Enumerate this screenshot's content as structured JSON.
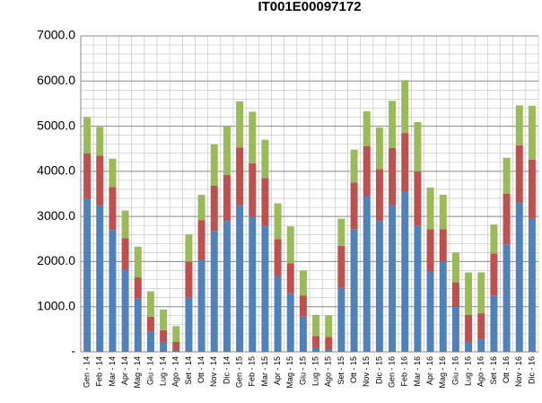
{
  "chart_data": {
    "type": "stacked_bar",
    "title": "IT001E00097172",
    "categories": [
      "Gen - 14",
      "Feb - 14",
      "Mar - 14",
      "Apr - 14",
      "Mag - 14",
      "Giu - 14",
      "Lug - 14",
      "Ago - 14",
      "Set - 14",
      "Ott - 14",
      "Nov - 14",
      "Dic - 14",
      "Gen - 15",
      "Feb - 15",
      "Mar - 15",
      "Apr - 15",
      "Mag - 15",
      "Giu - 15",
      "Lug - 15",
      "Ago - 15",
      "Set - 15",
      "Ott - 15",
      "Nov - 15",
      "Dic - 15",
      "Gen - 16",
      "Feb - 16",
      "Mar - 16",
      "Apr - 16",
      "Mag - 16",
      "Giu - 16",
      "Lug - 16",
      "Ago - 16",
      "Set - 16",
      "Ott - 16",
      "Nov - 16",
      "Dic - 16"
    ],
    "series": [
      {
        "color": "#4f81bd",
        "values": [
          3400,
          3250,
          2700,
          1820,
          1180,
          450,
          220,
          30,
          1200,
          2030,
          2680,
          2900,
          3250,
          3000,
          2800,
          1680,
          1300,
          780,
          100,
          60,
          1420,
          2720,
          3450,
          2900,
          3250,
          3560,
          2800,
          1780,
          2000,
          1000,
          200,
          280,
          1250,
          2380,
          3300,
          2950
        ]
      },
      {
        "color": "#c0504d",
        "values": [
          1000,
          1100,
          950,
          700,
          470,
          330,
          260,
          190,
          800,
          890,
          1000,
          1020,
          1280,
          1180,
          1050,
          820,
          660,
          470,
          250,
          270,
          930,
          1030,
          1110,
          1150,
          1270,
          1290,
          1200,
          940,
          720,
          540,
          620,
          580,
          930,
          1120,
          1280,
          1310
        ]
      },
      {
        "color": "#9bbb59",
        "values": [
          800,
          630,
          630,
          610,
          680,
          560,
          460,
          350,
          600,
          560,
          920,
          1080,
          1020,
          1140,
          850,
          790,
          820,
          550,
          470,
          480,
          600,
          730,
          770,
          920,
          1040,
          1170,
          1090,
          920,
          760,
          660,
          940,
          900,
          640,
          800,
          880,
          1190
        ]
      }
    ],
    "ylim": [
      0,
      7000
    ],
    "yticks": [
      {
        "value": 0,
        "label": "-"
      },
      {
        "value": 1000,
        "label": "1000.0"
      },
      {
        "value": 2000,
        "label": "2000.0"
      },
      {
        "value": 3000,
        "label": "3000.0"
      },
      {
        "value": 4000,
        "label": "4000.0"
      },
      {
        "value": 5000,
        "label": "5000.0"
      },
      {
        "value": 6000,
        "label": "6000.0"
      },
      {
        "value": 7000,
        "label": "7000.0"
      }
    ],
    "grid": true
  }
}
